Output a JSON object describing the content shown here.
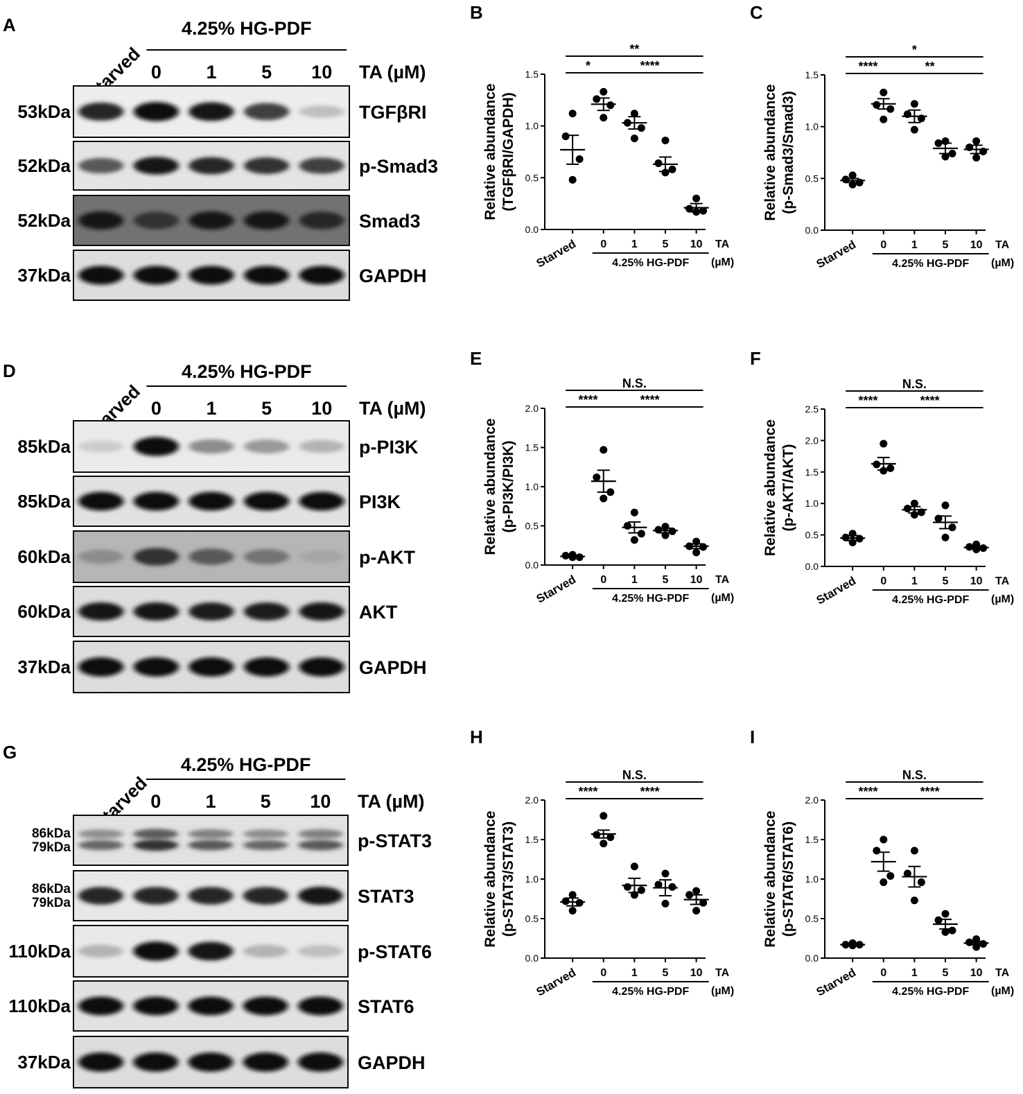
{
  "figure": {
    "panels": [
      {
        "letter": "A",
        "starved": "Starved",
        "treatment": "4.25% HG-PDF",
        "ta_label": "TA (µM)",
        "doses": [
          "0",
          "1",
          "5",
          "10"
        ],
        "rows": [
          {
            "mw": [
              "53kDa"
            ],
            "protein": "TGFβRI",
            "intensity": [
              0.85,
              0.95,
              0.9,
              0.75,
              0.25
            ],
            "bg": "#f2f2f2"
          },
          {
            "mw": [
              "52kDa"
            ],
            "protein": "p-Smad3",
            "intensity": [
              0.65,
              0.9,
              0.85,
              0.8,
              0.75
            ],
            "bg": "#e8e8e8"
          },
          {
            "mw": [
              "52kDa"
            ],
            "protein": "Smad3",
            "intensity": [
              0.9,
              0.8,
              0.9,
              0.9,
              0.85
            ],
            "bg": "#6b6b6b"
          },
          {
            "mw": [
              "37kDa"
            ],
            "protein": "GAPDH",
            "intensity": [
              0.95,
              0.95,
              0.95,
              0.95,
              0.95
            ],
            "bg": "#e0e0e0"
          }
        ]
      },
      {
        "letter": "D",
        "starved": "Starved",
        "treatment": "4.25% HG-PDF",
        "ta_label": "TA (µM)",
        "doses": [
          "0",
          "1",
          "5",
          "10"
        ],
        "rows": [
          {
            "mw": [
              "85kDa"
            ],
            "protein": "p-PI3K",
            "intensity": [
              0.2,
              0.95,
              0.45,
              0.4,
              0.3
            ],
            "bg": "#efefef"
          },
          {
            "mw": [
              "85kDa"
            ],
            "protein": "PI3K",
            "intensity": [
              0.95,
              0.95,
              0.95,
              0.95,
              0.95
            ],
            "bg": "#e5e5e5"
          },
          {
            "mw": [
              "60kDa"
            ],
            "protein": "p-AKT",
            "intensity": [
              0.45,
              0.8,
              0.65,
              0.55,
              0.35
            ],
            "bg": "#b5b5b5"
          },
          {
            "mw": [
              "60kDa"
            ],
            "protein": "AKT",
            "intensity": [
              0.9,
              0.9,
              0.88,
              0.88,
              0.9
            ],
            "bg": "#e0e0e0"
          },
          {
            "mw": [
              "37kDa"
            ],
            "protein": "GAPDH",
            "intensity": [
              0.95,
              0.95,
              0.95,
              0.95,
              0.95
            ],
            "bg": "#e0e0e0"
          }
        ]
      },
      {
        "letter": "G",
        "starved": "Starved",
        "treatment": "4.25% HG-PDF",
        "ta_label": "TA (µM)",
        "doses": [
          "0",
          "1",
          "5",
          "10"
        ],
        "rows": [
          {
            "mw": [
              "86kDa",
              "79kDa"
            ],
            "protein": "p-STAT3",
            "intensity": [
              0.6,
              0.8,
              0.65,
              0.6,
              0.65
            ],
            "bg": "#e5e5e5",
            "double": true
          },
          {
            "mw": [
              "86kDa",
              "79kDa"
            ],
            "protein": "STAT3",
            "intensity": [
              0.85,
              0.85,
              0.85,
              0.85,
              0.9
            ],
            "bg": "#ececec"
          },
          {
            "mw": [
              "110kDa"
            ],
            "protein": "p-STAT6",
            "intensity": [
              0.3,
              0.95,
              0.9,
              0.3,
              0.25
            ],
            "bg": "#ededed"
          },
          {
            "mw": [
              "110kDa"
            ],
            "protein": "STAT6",
            "intensity": [
              0.95,
              0.95,
              0.95,
              0.95,
              0.95
            ],
            "bg": "#e5e5e5"
          },
          {
            "mw": [
              "37kDa"
            ],
            "protein": "GAPDH",
            "intensity": [
              0.95,
              0.95,
              0.95,
              0.95,
              0.95
            ],
            "bg": "#e0e0e0"
          }
        ]
      }
    ]
  },
  "chart_data": [
    {
      "letter": "B",
      "type": "scatter",
      "categories": [
        "Starved",
        "0",
        "1",
        "5",
        "10"
      ],
      "group_label": "4.25% HG-PDF",
      "ta_label": [
        "TA",
        "(µM)"
      ],
      "ylabel": [
        "Relative abundance",
        "(TGFβRI/GAPDH)"
      ],
      "ylim": [
        0,
        1.5
      ],
      "yticks": [
        "0.0",
        "0.5",
        "1.0",
        "1.5"
      ],
      "means": [
        0.77,
        1.21,
        1.03,
        0.63,
        0.21
      ],
      "sem": [
        0.14,
        0.06,
        0.06,
        0.07,
        0.04
      ],
      "points": [
        [
          1.12,
          0.9,
          0.68,
          0.48
        ],
        [
          1.33,
          1.26,
          1.2,
          1.08
        ],
        [
          1.12,
          1.03,
          0.98,
          0.88
        ],
        [
          0.86,
          0.64,
          0.58,
          0.55
        ],
        [
          0.3,
          0.2,
          0.18,
          0.17
        ]
      ],
      "sig": [
        {
          "text": "**",
          "from": 0,
          "to": 4,
          "level": 1
        },
        {
          "text": "*",
          "from": 0,
          "to": 1,
          "level": 0
        },
        {
          "text": "****",
          "from": 1,
          "to": 4,
          "level": 0
        }
      ]
    },
    {
      "letter": "C",
      "type": "scatter",
      "categories": [
        "Starved",
        "0",
        "1",
        "5",
        "10"
      ],
      "group_label": "4.25% HG-PDF",
      "ta_label": [
        "TA",
        "(µM)"
      ],
      "ylabel": [
        "Relative abundance",
        "(p-Smad3/Smad3)"
      ],
      "ylim": [
        0,
        1.5
      ],
      "yticks": [
        "0.0",
        "0.5",
        "1.0",
        "1.5"
      ],
      "means": [
        0.48,
        1.22,
        1.1,
        0.79,
        0.78
      ],
      "sem": [
        0.02,
        0.05,
        0.06,
        0.05,
        0.04
      ],
      "points": [
        [
          0.53,
          0.49,
          0.46,
          0.44
        ],
        [
          1.33,
          1.21,
          1.17,
          1.07
        ],
        [
          1.22,
          1.12,
          1.08,
          0.97
        ],
        [
          0.86,
          0.84,
          0.74,
          0.71
        ],
        [
          0.86,
          0.8,
          0.76,
          0.7
        ]
      ],
      "sig": [
        {
          "text": "*",
          "from": 0,
          "to": 4,
          "level": 1
        },
        {
          "text": "****",
          "from": 0,
          "to": 1,
          "level": 0
        },
        {
          "text": "**",
          "from": 1,
          "to": 4,
          "level": 0
        }
      ]
    },
    {
      "letter": "E",
      "type": "scatter",
      "categories": [
        "Starved",
        "0",
        "1",
        "5",
        "10"
      ],
      "group_label": "4.25% HG-PDF",
      "ta_label": [
        "TA",
        "(µM)"
      ],
      "ylabel": [
        "Relative abundance",
        "(p-PI3K/PI3K)"
      ],
      "ylim": [
        0,
        2.0
      ],
      "yticks": [
        "0.0",
        "0.5",
        "1.0",
        "1.5",
        "2.0"
      ],
      "means": [
        0.11,
        1.07,
        0.48,
        0.44,
        0.24
      ],
      "sem": [
        0.01,
        0.14,
        0.07,
        0.03,
        0.03
      ],
      "points": [
        [
          0.13,
          0.12,
          0.1,
          0.1
        ],
        [
          1.47,
          1.12,
          0.93,
          0.85
        ],
        [
          0.67,
          0.5,
          0.4,
          0.32
        ],
        [
          0.49,
          0.45,
          0.43,
          0.38
        ],
        [
          0.3,
          0.24,
          0.23,
          0.16
        ]
      ],
      "sig": [
        {
          "text": "N.S.",
          "from": 0,
          "to": 4,
          "level": 1
        },
        {
          "text": "****",
          "from": 0,
          "to": 1,
          "level": 0
        },
        {
          "text": "****",
          "from": 1,
          "to": 4,
          "level": 0
        }
      ]
    },
    {
      "letter": "F",
      "type": "scatter",
      "categories": [
        "Starved",
        "0",
        "1",
        "5",
        "10"
      ],
      "group_label": "4.25% HG-PDF",
      "ta_label": [
        "TA",
        "(µM)"
      ],
      "ylabel": [
        "Relative abundance",
        "(p-AKT/AKT)"
      ],
      "ylim": [
        0,
        2.5
      ],
      "yticks": [
        "0.0",
        "0.5",
        "1.0",
        "1.5",
        "2.0",
        "2.5"
      ],
      "means": [
        0.45,
        1.63,
        0.9,
        0.7,
        0.3
      ],
      "sem": [
        0.04,
        0.1,
        0.05,
        0.1,
        0.02
      ],
      "points": [
        [
          0.52,
          0.46,
          0.44,
          0.38
        ],
        [
          1.95,
          1.62,
          1.56,
          1.52
        ],
        [
          1.0,
          0.92,
          0.86,
          0.82
        ],
        [
          0.97,
          0.76,
          0.62,
          0.46
        ],
        [
          0.35,
          0.31,
          0.29,
          0.27
        ]
      ],
      "sig": [
        {
          "text": "N.S.",
          "from": 0,
          "to": 4,
          "level": 1
        },
        {
          "text": "****",
          "from": 0,
          "to": 1,
          "level": 0
        },
        {
          "text": "****",
          "from": 1,
          "to": 4,
          "level": 0
        }
      ]
    },
    {
      "letter": "H",
      "type": "scatter",
      "categories": [
        "Starved",
        "0",
        "1",
        "5",
        "10"
      ],
      "group_label": "4.25% HG-PDF",
      "ta_label": [
        "TA",
        "(µM)"
      ],
      "ylabel": [
        "Relative abundance",
        "(p-STAT3/STAT3)"
      ],
      "ylim": [
        0,
        2.0
      ],
      "yticks": [
        "0.0",
        "0.5",
        "1.0",
        "1.5",
        "2.0"
      ],
      "means": [
        0.71,
        1.57,
        0.92,
        0.89,
        0.74
      ],
      "sem": [
        0.05,
        0.05,
        0.09,
        0.1,
        0.06
      ],
      "points": [
        [
          0.8,
          0.72,
          0.7,
          0.6
        ],
        [
          1.8,
          1.56,
          1.53,
          1.45
        ],
        [
          1.16,
          0.9,
          0.86,
          0.8
        ],
        [
          1.07,
          0.93,
          0.9,
          0.69
        ],
        [
          0.85,
          0.8,
          0.7,
          0.6
        ]
      ],
      "sig": [
        {
          "text": "N.S.",
          "from": 0,
          "to": 4,
          "level": 1
        },
        {
          "text": "****",
          "from": 0,
          "to": 1,
          "level": 0
        },
        {
          "text": "****",
          "from": 1,
          "to": 4,
          "level": 0
        }
      ]
    },
    {
      "letter": "I",
      "type": "scatter",
      "categories": [
        "Starved",
        "0",
        "1",
        "5",
        "10"
      ],
      "group_label": "4.25% HG-PDF",
      "ta_label": [
        "TA",
        "(µM)"
      ],
      "ylabel": [
        "Relative abundance",
        "(p-STAT6/STAT6)"
      ],
      "ylim": [
        0,
        2.0
      ],
      "yticks": [
        "0.0",
        "0.5",
        "1.0",
        "1.5",
        "2.0"
      ],
      "means": [
        0.17,
        1.22,
        1.03,
        0.43,
        0.19
      ],
      "sem": [
        0.01,
        0.12,
        0.13,
        0.06,
        0.02
      ],
      "points": [
        [
          0.19,
          0.17,
          0.17,
          0.16
        ],
        [
          1.5,
          1.36,
          1.04,
          0.96
        ],
        [
          1.36,
          1.07,
          0.96,
          0.73
        ],
        [
          0.56,
          0.48,
          0.35,
          0.33
        ],
        [
          0.24,
          0.2,
          0.18,
          0.14
        ]
      ],
      "sig": [
        {
          "text": "N.S.",
          "from": 0,
          "to": 4,
          "level": 1
        },
        {
          "text": "****",
          "from": 0,
          "to": 1,
          "level": 0
        },
        {
          "text": "****",
          "from": 1,
          "to": 4,
          "level": 0
        }
      ]
    }
  ]
}
